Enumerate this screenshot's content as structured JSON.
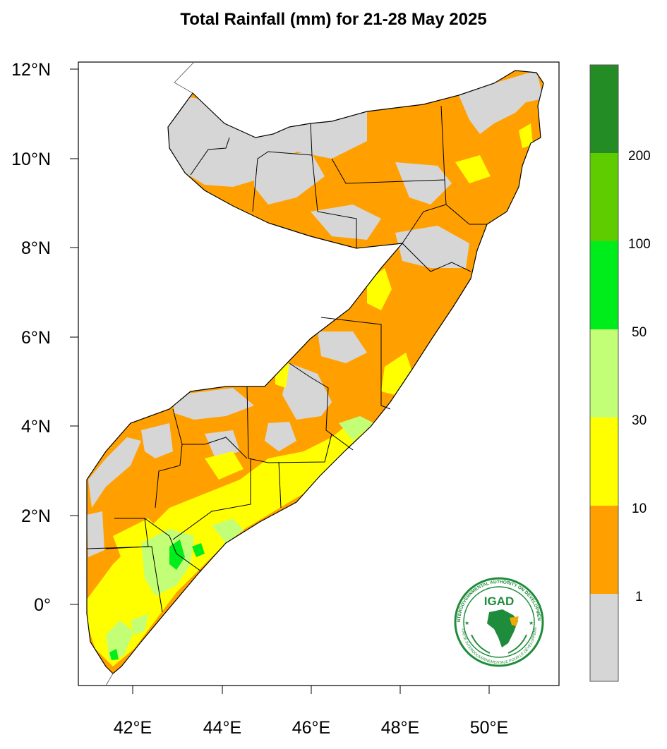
{
  "title": "Total Rainfall (mm) for 21-28 May 2025",
  "map": {
    "x_axis_labels": [
      "42°E",
      "44°E",
      "46°E",
      "48°E",
      "50°E"
    ],
    "y_axis_labels": [
      "12°N",
      "10°N",
      "8°N",
      "6°N",
      "4°N",
      "2°N",
      "0°"
    ],
    "lon_ticks": [
      42,
      44,
      46,
      48,
      50
    ],
    "lat_ticks": [
      12,
      10,
      8,
      6,
      4,
      2,
      0
    ],
    "lon_range": [
      40.8,
      51.6
    ],
    "lat_range": [
      -1.8,
      12.2
    ]
  },
  "legend": {
    "labels": [
      "1",
      "10",
      "30",
      "50",
      "100",
      "200"
    ],
    "classes": [
      {
        "color": "#d6d6d6",
        "label": "<1"
      },
      {
        "color": "#ffa000",
        "label": "1-10"
      },
      {
        "color": "#ffff00",
        "label": "10-30"
      },
      {
        "color": "#c3ff76",
        "label": "30-50"
      },
      {
        "color": "#00ed1c",
        "label": "50-100"
      },
      {
        "color": "#5fcc00",
        "label": "100-200"
      },
      {
        "color": "#248c24",
        "label": ">200"
      }
    ]
  },
  "logo": {
    "text": "IGAD",
    "ring_top": "INTERGOVERNMENTAL AUTHORITY ON DEVELOPMENT",
    "ring_bottom": "AUTORITÉ INTERGOUVERNEMENTALE POUR LE DÉVELOPPEMENT"
  }
}
